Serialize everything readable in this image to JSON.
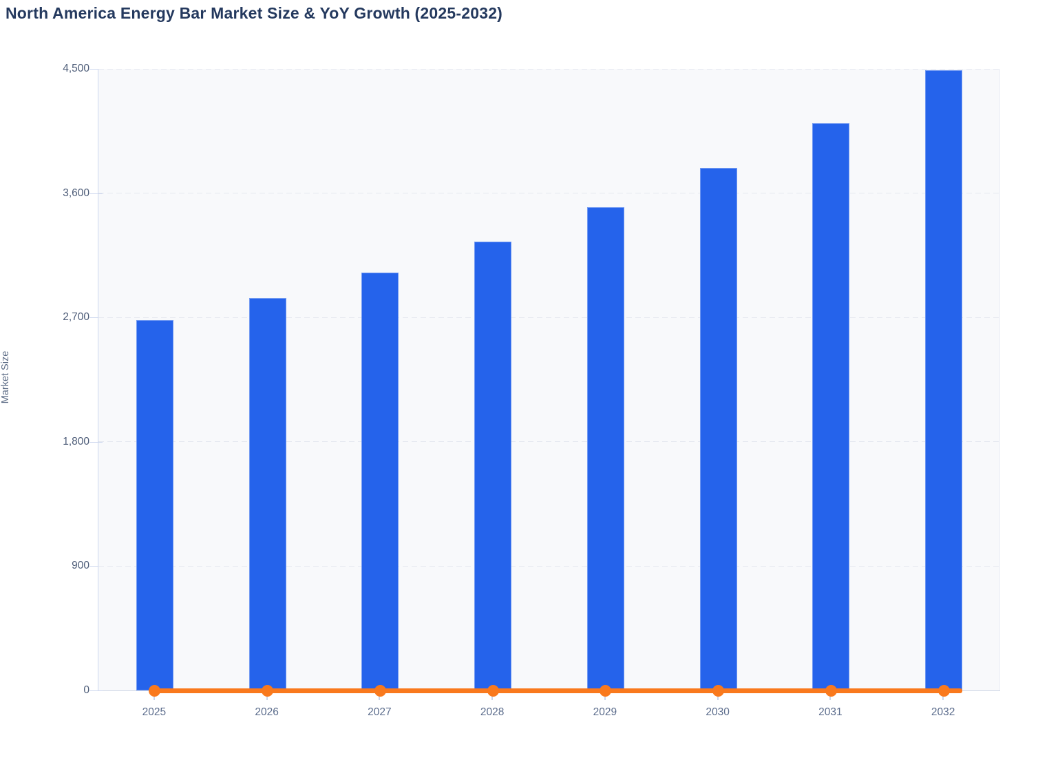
{
  "page": {
    "title": "North America Energy Bar Market Size & YoY Growth (2025-2032)"
  },
  "chart_data": {
    "type": "bar",
    "title": "North America Energy Bar Market Size & YoY Growth (2025-2032)",
    "xlabel": "",
    "ylabel": "Market Size",
    "categories": [
      "2025",
      "2026",
      "2027",
      "2028",
      "2029",
      "2030",
      "2031",
      "2032"
    ],
    "series": [
      {
        "name": "Market Size",
        "type": "bar",
        "color": "#2563eb",
        "values": [
          2680,
          2840,
          3025,
          3250,
          3500,
          3780,
          4105,
          4490
        ]
      },
      {
        "name": "YoY Growth",
        "type": "line",
        "color": "#f9791d",
        "values": [
          0,
          0,
          0,
          0,
          0,
          0,
          0,
          0
        ],
        "appearance_note": "renders as a flat orange line with circular markers along the zero baseline of the primary axis"
      }
    ],
    "ylim": [
      0,
      4500
    ],
    "yticks": [
      0,
      900,
      1800,
      2700,
      3600,
      4500
    ],
    "ytick_labels": [
      "0",
      "900",
      "1,800",
      "2,700",
      "3,600",
      "4,500"
    ],
    "grid": "horizontal-dashed",
    "legend": "none"
  },
  "colors": {
    "bar_blue": "#2563eb",
    "line_orange": "#f9791d",
    "title_text": "#24395e",
    "plot_background": "#f8f9fb",
    "gridline": "#e4e7ef",
    "axis_line": "#ccd6ee"
  }
}
